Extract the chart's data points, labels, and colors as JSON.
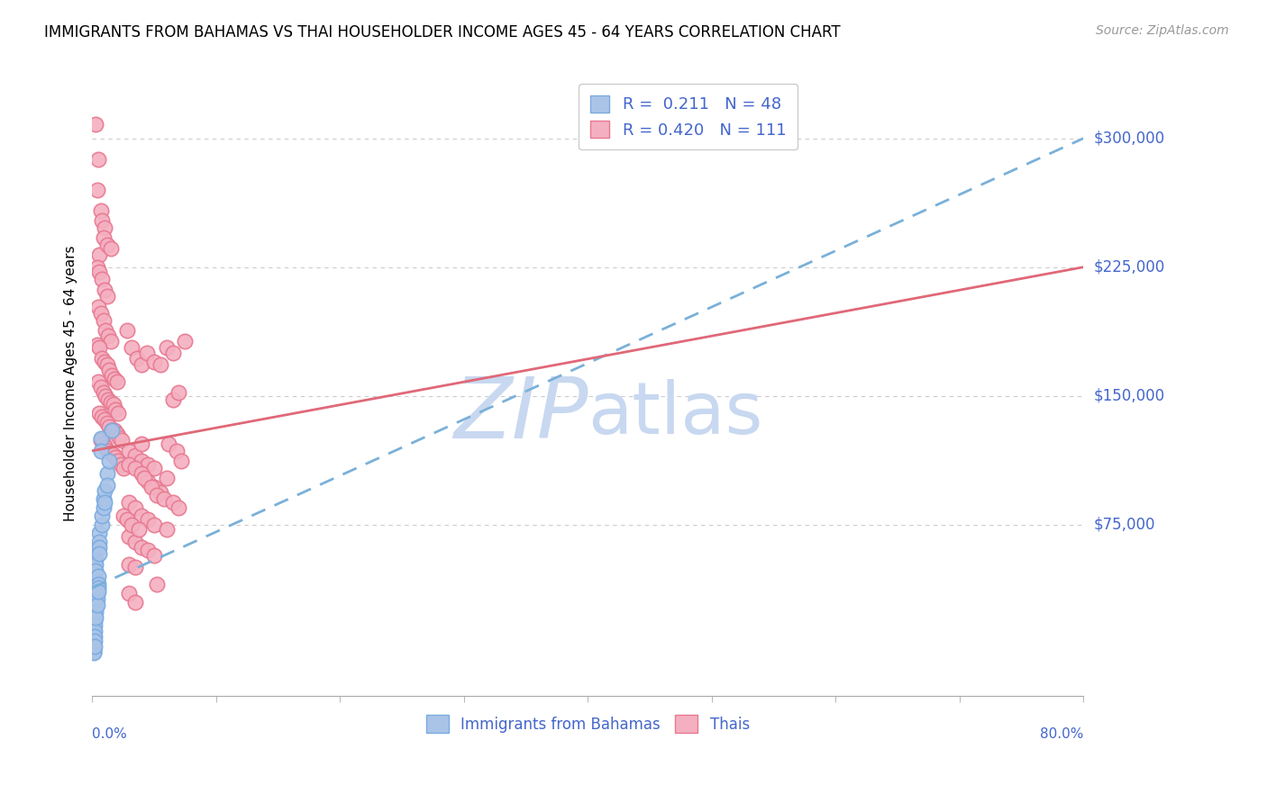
{
  "title": "IMMIGRANTS FROM BAHAMAS VS THAI HOUSEHOLDER INCOME AGES 45 - 64 YEARS CORRELATION CHART",
  "source": "Source: ZipAtlas.com",
  "ylabel": "Householder Income Ages 45 - 64 years",
  "ytick_labels": [
    "$75,000",
    "$150,000",
    "$225,000",
    "$300,000"
  ],
  "ytick_values": [
    75000,
    150000,
    225000,
    300000
  ],
  "bahamas_color": "#aac4e8",
  "bahamas_edge_color": "#7aabe0",
  "thais_color": "#f4b0c0",
  "thais_edge_color": "#e87890",
  "trend_bahamas_color": "#7ab0d8",
  "trend_thais_color": "#e06878",
  "watermark_zi": "ZIP",
  "watermark_atlas": "atlas",
  "watermark_color": "#c8d8f0",
  "xmin": 0.0,
  "xmax": 0.8,
  "ymin": -25000,
  "ymax": 340000,
  "grid_color": "#cccccc",
  "title_fontsize": 12,
  "axis_label_color": "#4466cc",
  "tick_label_color": "#4466cc",
  "bahamas_trend_x": [
    0.0,
    0.8
  ],
  "bahamas_trend_y": [
    38000,
    300000
  ],
  "thais_trend_x": [
    0.0,
    0.8
  ],
  "thais_trend_y": [
    118000,
    225000
  ],
  "bahamas_points": [
    [
      0.001,
      5000
    ],
    [
      0.001,
      3000
    ],
    [
      0.001,
      2000
    ],
    [
      0.001,
      1000
    ],
    [
      0.001,
      500
    ],
    [
      0.001,
      8000
    ],
    [
      0.001,
      12000
    ],
    [
      0.001,
      18000
    ],
    [
      0.002,
      25000
    ],
    [
      0.002,
      22000
    ],
    [
      0.002,
      19000
    ],
    [
      0.002,
      16000
    ],
    [
      0.002,
      13000
    ],
    [
      0.002,
      10000
    ],
    [
      0.002,
      7000
    ],
    [
      0.002,
      4000
    ],
    [
      0.002,
      60000
    ],
    [
      0.003,
      30000
    ],
    [
      0.003,
      27000
    ],
    [
      0.003,
      24000
    ],
    [
      0.003,
      21000
    ],
    [
      0.003,
      55000
    ],
    [
      0.003,
      52000
    ],
    [
      0.003,
      48000
    ],
    [
      0.004,
      35000
    ],
    [
      0.004,
      32000
    ],
    [
      0.004,
      28000
    ],
    [
      0.004,
      42000
    ],
    [
      0.005,
      45000
    ],
    [
      0.005,
      40000
    ],
    [
      0.005,
      38000
    ],
    [
      0.005,
      36000
    ],
    [
      0.006,
      70000
    ],
    [
      0.006,
      65000
    ],
    [
      0.006,
      62000
    ],
    [
      0.006,
      58000
    ],
    [
      0.007,
      125000
    ],
    [
      0.007,
      118000
    ],
    [
      0.008,
      75000
    ],
    [
      0.008,
      80000
    ],
    [
      0.009,
      85000
    ],
    [
      0.009,
      90000
    ],
    [
      0.01,
      95000
    ],
    [
      0.01,
      88000
    ],
    [
      0.012,
      105000
    ],
    [
      0.012,
      98000
    ],
    [
      0.014,
      112000
    ],
    [
      0.016,
      130000
    ]
  ],
  "thais_points": [
    [
      0.003,
      308000
    ],
    [
      0.005,
      288000
    ],
    [
      0.004,
      270000
    ],
    [
      0.007,
      258000
    ],
    [
      0.008,
      252000
    ],
    [
      0.01,
      248000
    ],
    [
      0.006,
      232000
    ],
    [
      0.009,
      242000
    ],
    [
      0.012,
      238000
    ],
    [
      0.015,
      236000
    ],
    [
      0.004,
      225000
    ],
    [
      0.006,
      222000
    ],
    [
      0.008,
      218000
    ],
    [
      0.01,
      212000
    ],
    [
      0.012,
      208000
    ],
    [
      0.005,
      202000
    ],
    [
      0.007,
      198000
    ],
    [
      0.009,
      194000
    ],
    [
      0.011,
      188000
    ],
    [
      0.013,
      185000
    ],
    [
      0.015,
      182000
    ],
    [
      0.004,
      180000
    ],
    [
      0.006,
      178000
    ],
    [
      0.008,
      172000
    ],
    [
      0.01,
      170000
    ],
    [
      0.012,
      168000
    ],
    [
      0.014,
      165000
    ],
    [
      0.016,
      162000
    ],
    [
      0.018,
      160000
    ],
    [
      0.02,
      158000
    ],
    [
      0.005,
      158000
    ],
    [
      0.007,
      155000
    ],
    [
      0.009,
      152000
    ],
    [
      0.011,
      150000
    ],
    [
      0.013,
      148000
    ],
    [
      0.015,
      146000
    ],
    [
      0.017,
      145000
    ],
    [
      0.019,
      142000
    ],
    [
      0.021,
      140000
    ],
    [
      0.006,
      140000
    ],
    [
      0.008,
      138000
    ],
    [
      0.01,
      136000
    ],
    [
      0.012,
      134000
    ],
    [
      0.014,
      132000
    ],
    [
      0.016,
      130000
    ],
    [
      0.018,
      130000
    ],
    [
      0.02,
      128000
    ],
    [
      0.022,
      126000
    ],
    [
      0.024,
      124000
    ],
    [
      0.007,
      124000
    ],
    [
      0.009,
      122000
    ],
    [
      0.011,
      120000
    ],
    [
      0.013,
      118000
    ],
    [
      0.015,
      117000
    ],
    [
      0.017,
      116000
    ],
    [
      0.019,
      114000
    ],
    [
      0.021,
      112000
    ],
    [
      0.023,
      110000
    ],
    [
      0.025,
      108000
    ],
    [
      0.028,
      188000
    ],
    [
      0.032,
      178000
    ],
    [
      0.036,
      172000
    ],
    [
      0.04,
      168000
    ],
    [
      0.044,
      175000
    ],
    [
      0.05,
      170000
    ],
    [
      0.055,
      168000
    ],
    [
      0.03,
      118000
    ],
    [
      0.035,
      115000
    ],
    [
      0.04,
      112000
    ],
    [
      0.045,
      110000
    ],
    [
      0.05,
      108000
    ],
    [
      0.06,
      102000
    ],
    [
      0.03,
      110000
    ],
    [
      0.035,
      108000
    ],
    [
      0.04,
      105000
    ],
    [
      0.045,
      100000
    ],
    [
      0.05,
      97000
    ],
    [
      0.055,
      94000
    ],
    [
      0.03,
      88000
    ],
    [
      0.035,
      85000
    ],
    [
      0.04,
      80000
    ],
    [
      0.045,
      78000
    ],
    [
      0.05,
      75000
    ],
    [
      0.06,
      72000
    ],
    [
      0.03,
      68000
    ],
    [
      0.035,
      65000
    ],
    [
      0.04,
      62000
    ],
    [
      0.045,
      60000
    ],
    [
      0.05,
      57000
    ],
    [
      0.03,
      52000
    ],
    [
      0.035,
      50000
    ],
    [
      0.04,
      122000
    ],
    [
      0.025,
      80000
    ],
    [
      0.028,
      78000
    ],
    [
      0.032,
      75000
    ],
    [
      0.038,
      72000
    ],
    [
      0.042,
      102000
    ],
    [
      0.048,
      97000
    ],
    [
      0.052,
      92000
    ],
    [
      0.058,
      90000
    ],
    [
      0.06,
      178000
    ],
    [
      0.065,
      175000
    ],
    [
      0.062,
      122000
    ],
    [
      0.068,
      118000
    ],
    [
      0.072,
      112000
    ],
    [
      0.075,
      182000
    ],
    [
      0.065,
      88000
    ],
    [
      0.07,
      85000
    ],
    [
      0.052,
      40000
    ],
    [
      0.03,
      35000
    ],
    [
      0.035,
      30000
    ],
    [
      0.065,
      148000
    ],
    [
      0.07,
      152000
    ]
  ]
}
